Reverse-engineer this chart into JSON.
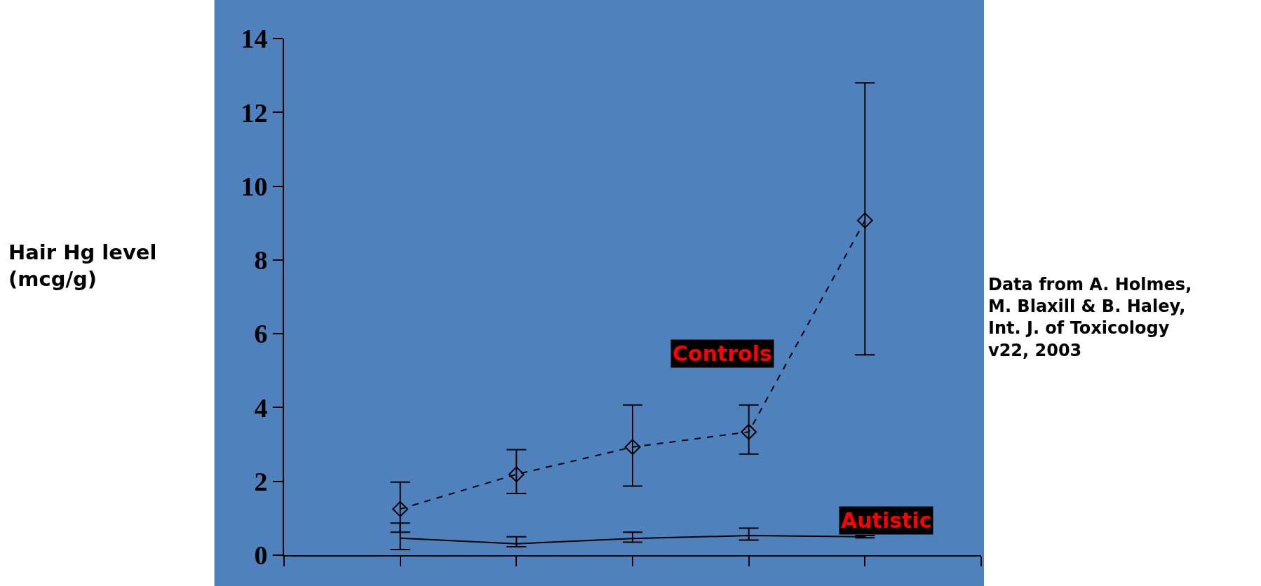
{
  "chart_data": {
    "type": "line",
    "categories": [
      null,
      null,
      null,
      null,
      null
    ],
    "series": [
      {
        "name": "Controls",
        "color": "#000000",
        "marker": "diamond",
        "line_style": "dashed",
        "values": [
          1.25,
          2.19,
          2.93,
          3.34,
          9.07
        ],
        "errors": [
          [
            0.62,
            1.98
          ],
          [
            1.67,
            2.86
          ],
          [
            1.87,
            4.07
          ],
          [
            2.74,
            4.07
          ],
          [
            5.43,
            12.8
          ]
        ]
      },
      {
        "name": "Autistic",
        "color": "#000000",
        "marker": "none",
        "line_style": "solid",
        "values": [
          0.46,
          0.31,
          0.45,
          0.53,
          0.5
        ],
        "errors": [
          [
            0.15,
            0.87
          ],
          [
            0.23,
            0.5
          ],
          [
            0.35,
            0.62
          ],
          [
            0.41,
            0.73
          ],
          [
            0.47,
            0.53
          ]
        ]
      }
    ],
    "ylim": [
      0,
      14
    ],
    "yticks": [
      0,
      2,
      4,
      6,
      8,
      10,
      12,
      14
    ],
    "grid": false,
    "legend": false,
    "annotations": [
      "Hair Hg level\n(mcg/g)",
      "Data from A. Holmes,\nM. Blaxill & B. Haley,\nInt. J. of Toxicology\nv22, 2003"
    ]
  }
}
